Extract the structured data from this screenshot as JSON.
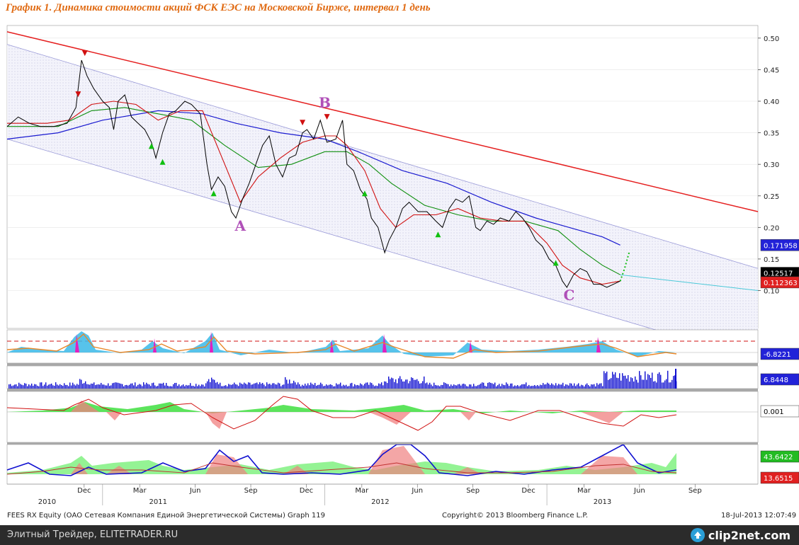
{
  "page": {
    "title": "График 1.   Динамика стоимости акций ФСК ЕЭС на Московской Бирже, интервал 1 день",
    "source_line": "FEES RX Equity (ОАО Сетевая Компания Единой Энергетической Системы) Graph 119",
    "copyright": "Copyright© 2013 Bloomberg Finance L.P.",
    "timestamp": "18-Jul-2013 12:07:49",
    "footer_left": "Элитный Трейдер, ELITETRADER.RU",
    "footer_logo": "clip2net.com"
  },
  "colors": {
    "price": "#000000",
    "ma_short": "#d01010",
    "ma_mid": "#0f8f0f",
    "ma_long": "#1a1ad0",
    "trend_line": "#e52020",
    "channel_line": "#9a9ad8",
    "label_purple": "#b050b8",
    "up_signal": "#10c010",
    "down_signal": "#d01010",
    "volume": "#1010d0",
    "title_orange": "#e06a12"
  },
  "chart_data": {
    "type": "line",
    "x_axis": {
      "month_labels": [
        "Dec",
        "Mar",
        "Jun",
        "Sep",
        "Dec",
        "Mar",
        "Jun",
        "Sep",
        "Dec",
        "Mar",
        "Jun",
        "Sep"
      ],
      "month_positions": [
        2010.917,
        2011.167,
        2011.417,
        2011.667,
        2011.917,
        2012.167,
        2012.417,
        2012.667,
        2012.917,
        2013.167,
        2013.417,
        2013.667
      ],
      "year_labels": [
        "2010",
        "2011",
        "2012",
        "2013"
      ],
      "year_positions": [
        2010.75,
        2011.25,
        2012.25,
        2013.25
      ],
      "range": [
        2010.57,
        2013.95
      ]
    },
    "price_panel": {
      "yticks": [
        "0.50",
        "0.45",
        "0.40",
        "0.35",
        "0.30",
        "0.25",
        "0.20",
        "0.15",
        "0.10"
      ],
      "ylim": [
        0.04,
        0.52
      ],
      "price_series": [
        [
          2010.57,
          0.36
        ],
        [
          2010.62,
          0.375
        ],
        [
          2010.67,
          0.365
        ],
        [
          2010.72,
          0.36
        ],
        [
          2010.78,
          0.36
        ],
        [
          2010.84,
          0.365
        ],
        [
          2010.88,
          0.39
        ],
        [
          2010.905,
          0.465
        ],
        [
          2010.93,
          0.44
        ],
        [
          2010.96,
          0.42
        ],
        [
          2011.0,
          0.4
        ],
        [
          2011.03,
          0.39
        ],
        [
          2011.05,
          0.355
        ],
        [
          2011.07,
          0.4
        ],
        [
          2011.1,
          0.41
        ],
        [
          2011.13,
          0.375
        ],
        [
          2011.16,
          0.365
        ],
        [
          2011.19,
          0.355
        ],
        [
          2011.22,
          0.335
        ],
        [
          2011.24,
          0.31
        ],
        [
          2011.27,
          0.35
        ],
        [
          2011.3,
          0.38
        ],
        [
          2011.33,
          0.385
        ],
        [
          2011.37,
          0.4
        ],
        [
          2011.4,
          0.395
        ],
        [
          2011.44,
          0.38
        ],
        [
          2011.47,
          0.3
        ],
        [
          2011.49,
          0.26
        ],
        [
          2011.52,
          0.28
        ],
        [
          2011.55,
          0.265
        ],
        [
          2011.58,
          0.225
        ],
        [
          2011.6,
          0.215
        ],
        [
          2011.63,
          0.245
        ],
        [
          2011.66,
          0.27
        ],
        [
          2011.69,
          0.3
        ],
        [
          2011.72,
          0.33
        ],
        [
          2011.75,
          0.345
        ],
        [
          2011.78,
          0.3
        ],
        [
          2011.81,
          0.28
        ],
        [
          2011.84,
          0.31
        ],
        [
          2011.87,
          0.315
        ],
        [
          2011.9,
          0.35
        ],
        [
          2011.92,
          0.355
        ],
        [
          2011.95,
          0.34
        ],
        [
          2011.98,
          0.37
        ],
        [
          2012.01,
          0.335
        ],
        [
          2012.05,
          0.34
        ],
        [
          2012.08,
          0.37
        ],
        [
          2012.1,
          0.3
        ],
        [
          2012.13,
          0.29
        ],
        [
          2012.16,
          0.26
        ],
        [
          2012.19,
          0.245
        ],
        [
          2012.21,
          0.215
        ],
        [
          2012.24,
          0.2
        ],
        [
          2012.27,
          0.16
        ],
        [
          2012.29,
          0.18
        ],
        [
          2012.32,
          0.2
        ],
        [
          2012.35,
          0.23
        ],
        [
          2012.38,
          0.24
        ],
        [
          2012.42,
          0.225
        ],
        [
          2012.46,
          0.225
        ],
        [
          2012.5,
          0.21
        ],
        [
          2012.53,
          0.2
        ],
        [
          2012.56,
          0.23
        ],
        [
          2012.59,
          0.245
        ],
        [
          2012.62,
          0.24
        ],
        [
          2012.65,
          0.25
        ],
        [
          2012.68,
          0.2
        ],
        [
          2012.7,
          0.195
        ],
        [
          2012.73,
          0.21
        ],
        [
          2012.76,
          0.205
        ],
        [
          2012.79,
          0.215
        ],
        [
          2012.83,
          0.21
        ],
        [
          2012.86,
          0.225
        ],
        [
          2012.89,
          0.215
        ],
        [
          2012.92,
          0.2
        ],
        [
          2012.95,
          0.18
        ],
        [
          2012.98,
          0.17
        ],
        [
          2013.01,
          0.15
        ],
        [
          2013.04,
          0.14
        ],
        [
          2013.07,
          0.115
        ],
        [
          2013.09,
          0.105
        ],
        [
          2013.12,
          0.125
        ],
        [
          2013.15,
          0.135
        ],
        [
          2013.18,
          0.13
        ],
        [
          2013.21,
          0.11
        ],
        [
          2013.24,
          0.11
        ],
        [
          2013.27,
          0.105
        ],
        [
          2013.3,
          0.11
        ],
        [
          2013.33,
          0.115
        ]
      ],
      "ma_short_series": [
        [
          2010.57,
          0.365
        ],
        [
          2010.75,
          0.365
        ],
        [
          2010.85,
          0.37
        ],
        [
          2010.95,
          0.395
        ],
        [
          2011.05,
          0.4
        ],
        [
          2011.15,
          0.395
        ],
        [
          2011.25,
          0.37
        ],
        [
          2011.35,
          0.385
        ],
        [
          2011.45,
          0.385
        ],
        [
          2011.55,
          0.3
        ],
        [
          2011.62,
          0.24
        ],
        [
          2011.7,
          0.28
        ],
        [
          2011.8,
          0.31
        ],
        [
          2011.9,
          0.335
        ],
        [
          2012.0,
          0.345
        ],
        [
          2012.05,
          0.345
        ],
        [
          2012.1,
          0.33
        ],
        [
          2012.18,
          0.29
        ],
        [
          2012.25,
          0.23
        ],
        [
          2012.32,
          0.2
        ],
        [
          2012.4,
          0.22
        ],
        [
          2012.5,
          0.22
        ],
        [
          2012.6,
          0.23
        ],
        [
          2012.7,
          0.215
        ],
        [
          2012.8,
          0.21
        ],
        [
          2012.9,
          0.21
        ],
        [
          2013.0,
          0.175
        ],
        [
          2013.07,
          0.14
        ],
        [
          2013.15,
          0.12
        ],
        [
          2013.25,
          0.11
        ],
        [
          2013.33,
          0.115
        ]
      ],
      "ma_mid_series": [
        [
          2010.57,
          0.36
        ],
        [
          2010.8,
          0.36
        ],
        [
          2010.95,
          0.385
        ],
        [
          2011.1,
          0.39
        ],
        [
          2011.25,
          0.38
        ],
        [
          2011.4,
          0.37
        ],
        [
          2011.55,
          0.33
        ],
        [
          2011.7,
          0.295
        ],
        [
          2011.85,
          0.3
        ],
        [
          2012.0,
          0.32
        ],
        [
          2012.1,
          0.32
        ],
        [
          2012.2,
          0.3
        ],
        [
          2012.3,
          0.27
        ],
        [
          2012.45,
          0.235
        ],
        [
          2012.6,
          0.22
        ],
        [
          2012.75,
          0.21
        ],
        [
          2012.9,
          0.21
        ],
        [
          2013.05,
          0.195
        ],
        [
          2013.15,
          0.165
        ],
        [
          2013.25,
          0.14
        ],
        [
          2013.33,
          0.125
        ]
      ],
      "ma_long_series": [
        [
          2010.57,
          0.34
        ],
        [
          2010.8,
          0.35
        ],
        [
          2011.0,
          0.37
        ],
        [
          2011.25,
          0.385
        ],
        [
          2011.45,
          0.38
        ],
        [
          2011.6,
          0.365
        ],
        [
          2011.8,
          0.35
        ],
        [
          2012.0,
          0.34
        ],
        [
          2012.15,
          0.32
        ],
        [
          2012.35,
          0.29
        ],
        [
          2012.55,
          0.27
        ],
        [
          2012.75,
          0.24
        ],
        [
          2012.95,
          0.215
        ],
        [
          2013.1,
          0.2
        ],
        [
          2013.25,
          0.185
        ],
        [
          2013.33,
          0.172
        ]
      ],
      "projection_series": [
        [
          2013.33,
          0.115
        ],
        [
          2013.35,
          0.135
        ],
        [
          2013.37,
          0.16
        ]
      ],
      "channel_upper": [
        [
          2010.57,
          0.49
        ],
        [
          2013.95,
          0.135
        ]
      ],
      "channel_lower": [
        [
          2010.57,
          0.34
        ],
        [
          2013.95,
          -0.01
        ]
      ],
      "trend_line": [
        [
          2010.57,
          0.51
        ],
        [
          2013.95,
          0.225
        ]
      ],
      "extension_line": [
        [
          2013.33,
          0.125
        ],
        [
          2013.95,
          0.1
        ]
      ],
      "wave_labels": [
        {
          "text": "A",
          "x": 2011.62,
          "y": 0.195
        },
        {
          "text": "B",
          "x": 2012.0,
          "y": 0.39
        },
        {
          "text": "C",
          "x": 2013.1,
          "y": 0.085
        }
      ],
      "up_signals": [
        [
          2011.22,
          0.33
        ],
        [
          2011.27,
          0.305
        ],
        [
          2011.5,
          0.255
        ],
        [
          2012.18,
          0.255
        ],
        [
          2012.51,
          0.19
        ],
        [
          2013.04,
          0.145
        ]
      ],
      "down_signals": [
        [
          2010.89,
          0.41
        ],
        [
          2010.92,
          0.475
        ],
        [
          2011.9,
          0.365
        ],
        [
          2012.01,
          0.374
        ]
      ],
      "last_values": [
        "0.171958",
        "0.12517",
        "0.112363"
      ]
    },
    "indicator_1": {
      "last_value": "-6.8221"
    },
    "volume_panel": {
      "last_value": "6.8448"
    },
    "indicator_3": {
      "last_value": "0.001"
    },
    "indicator_4": {
      "last_values": [
        "43.6422",
        "13.6515"
      ]
    }
  }
}
